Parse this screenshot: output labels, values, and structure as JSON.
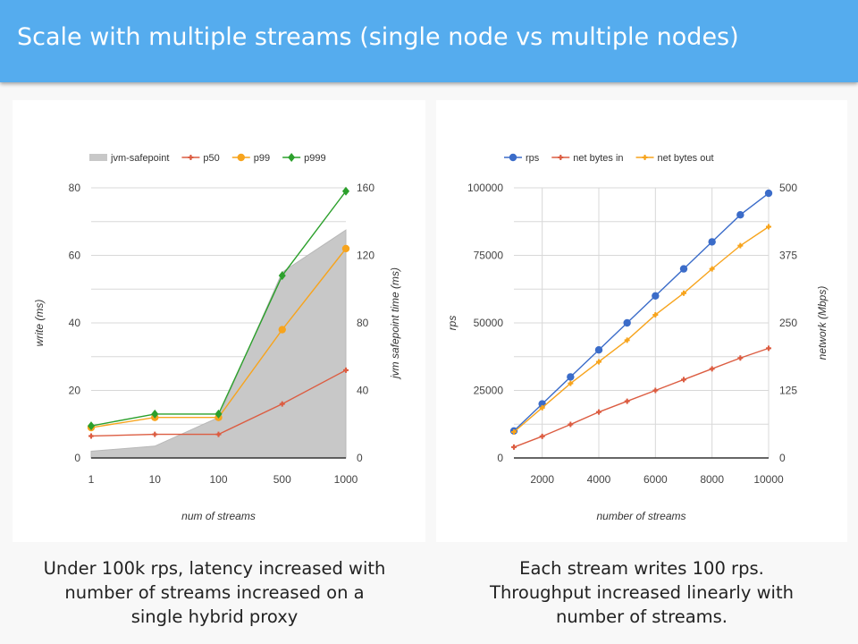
{
  "header": {
    "title": "Scale with multiple streams (single node vs multiple nodes)",
    "color": "#55acee"
  },
  "captions": {
    "left": [
      "Under 100k rps, latency increased with",
      "number of streams increased on a",
      "single hybrid proxy"
    ],
    "right": [
      "Each stream writes 100 rps.",
      "Throughput increased linearly with",
      "number of streams."
    ]
  },
  "chart_data": [
    {
      "type": "line",
      "title": "",
      "xlabel": "num of streams",
      "ylabel": "write (ms)",
      "y2label": "jvm safepoint time (ms)",
      "categories": [
        "1",
        "10",
        "100",
        "500",
        "1000"
      ],
      "ylim": [
        0,
        80
      ],
      "y2lim": [
        0,
        160
      ],
      "yticks": [
        "0",
        "20",
        "40",
        "60",
        "80"
      ],
      "y2ticks": [
        "0",
        "40",
        "80",
        "120",
        "160"
      ],
      "grid": true,
      "legend_position": "top",
      "series": [
        {
          "name": "jvm-safepoint",
          "kind": "area",
          "axis": "right",
          "color": "#c8c8c8",
          "values": [
            4,
            7,
            24,
            110,
            135
          ]
        },
        {
          "name": "p50",
          "kind": "line",
          "axis": "left",
          "color": "#dc5d42",
          "marker": "star",
          "values": [
            6.5,
            7,
            7,
            16,
            26
          ]
        },
        {
          "name": "p99",
          "kind": "line",
          "axis": "left",
          "color": "#f7a41d",
          "marker": "circle",
          "values": [
            9,
            12,
            12,
            38,
            62
          ]
        },
        {
          "name": "p999",
          "kind": "line",
          "axis": "left",
          "color": "#2ca02c",
          "marker": "diamond",
          "values": [
            9.5,
            13,
            13,
            54,
            79
          ]
        }
      ]
    },
    {
      "type": "line",
      "title": "",
      "xlabel": "number of streams",
      "ylabel": "rps",
      "y2label": "network (Mbps)",
      "x": [
        1000,
        2000,
        3000,
        4000,
        5000,
        6000,
        7000,
        8000,
        9000,
        10000
      ],
      "xticks": [
        "2000",
        "4000",
        "6000",
        "8000",
        "10000"
      ],
      "xlim": [
        1000,
        10000
      ],
      "ylim": [
        0,
        100000
      ],
      "y2lim": [
        0,
        500
      ],
      "yticks": [
        "0",
        "25000",
        "50000",
        "75000",
        "100000"
      ],
      "y2ticks": [
        "0",
        "125",
        "250",
        "375",
        "500"
      ],
      "grid": true,
      "legend_position": "top",
      "series": [
        {
          "name": "rps",
          "axis": "left",
          "color": "#3b6cc9",
          "marker": "circle",
          "values": [
            10000,
            20000,
            30000,
            40000,
            50000,
            60000,
            70000,
            80000,
            90000,
            98000
          ]
        },
        {
          "name": "net bytes in",
          "axis": "right",
          "color": "#dc5d42",
          "marker": "star",
          "values": [
            20,
            40,
            62,
            85,
            105,
            125,
            145,
            165,
            185,
            203
          ]
        },
        {
          "name": "net bytes out",
          "axis": "right",
          "color": "#f7a41d",
          "marker": "star",
          "values": [
            48,
            93,
            138,
            178,
            218,
            265,
            305,
            350,
            393,
            428
          ]
        }
      ]
    }
  ]
}
